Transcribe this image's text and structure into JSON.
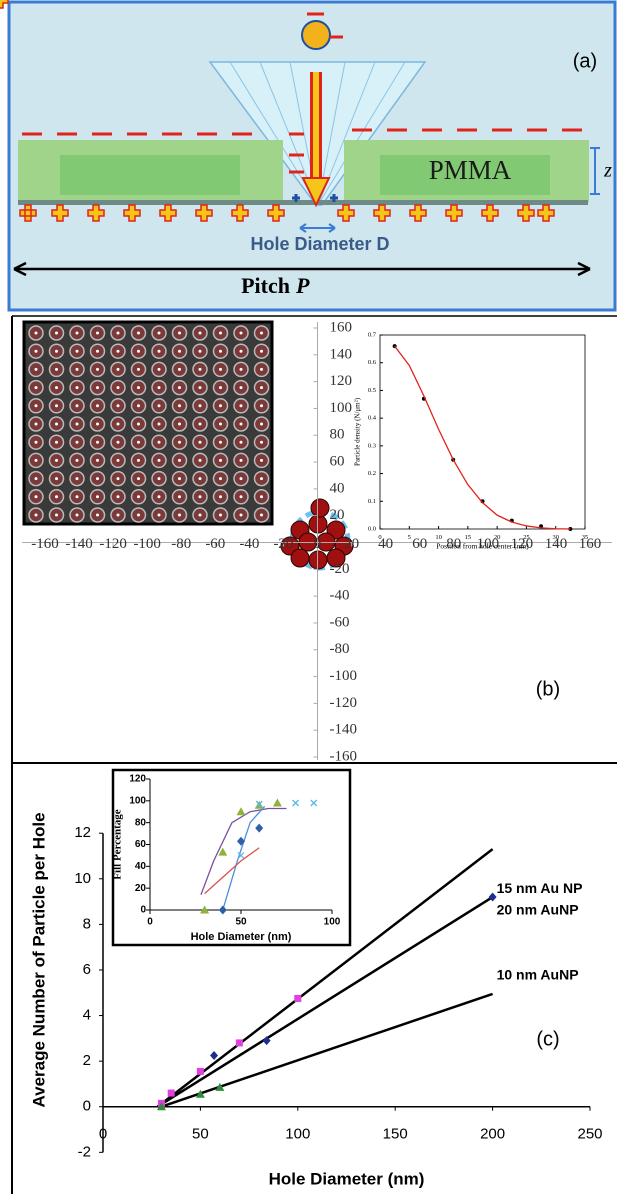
{
  "diagram": {
    "label": "(a)",
    "material": "PMMA",
    "z_label": "z",
    "hole_label": "Hole Diameter D",
    "pitch_word": "Pitch",
    "pitch_symbol": "P"
  },
  "chart_data": [
    {
      "type": "axes",
      "label": "(b)",
      "xlim": [
        -160,
        160
      ],
      "ylim": [
        -160,
        160
      ],
      "xticks": [
        -160,
        -140,
        -120,
        -100,
        -80,
        -60,
        -40,
        -20,
        0,
        20,
        40,
        60,
        80,
        100,
        120,
        140,
        160
      ],
      "yticks": [
        160,
        140,
        120,
        100,
        80,
        60,
        40,
        20,
        -20,
        -40,
        -60,
        -80,
        -100,
        -120,
        -140,
        -160
      ]
    },
    {
      "type": "line",
      "xlabel": "Position from hole center (nm)",
      "ylabel": "Particle density (N/μm²)",
      "xlim": [
        0,
        35
      ],
      "ylim": [
        0,
        0.7
      ],
      "xticks": [
        0,
        5,
        10,
        15,
        20,
        25,
        30,
        35
      ],
      "yticks": [
        {
          "value": 0,
          "label": "0.0"
        },
        0.1,
        0.2,
        0.3,
        0.4,
        0.5,
        0.6,
        0.7
      ],
      "series": [
        {
          "color": "#000000",
          "marker": "circle",
          "x": [
            2.5,
            7.5,
            12.5,
            17.5,
            22.5,
            27.5,
            32.5
          ],
          "values": [
            0.66,
            0.47,
            0.25,
            0.1,
            0.03,
            0.01,
            0.0
          ]
        },
        {
          "color": "#e0241b",
          "marker": "none",
          "x": [
            2.5,
            5,
            7.5,
            10,
            12.5,
            15,
            17.5,
            20,
            22.5,
            25,
            27.5,
            30,
            32.5
          ],
          "values": [
            0.66,
            0.59,
            0.48,
            0.36,
            0.25,
            0.16,
            0.095,
            0.05,
            0.025,
            0.011,
            0.004,
            0.001,
            0.0
          ]
        }
      ]
    },
    {
      "type": "scatter",
      "label": "(c)",
      "xlabel": "Hole Diameter (nm)",
      "ylabel": "Average Number of Particle per Hole",
      "xlim": [
        0,
        250
      ],
      "ylim": [
        -2.6,
        13.5
      ],
      "xticks": [
        0,
        50,
        100,
        150,
        200,
        250
      ],
      "yticks": [
        -2,
        0,
        2,
        4,
        6,
        8,
        10,
        12
      ],
      "series": [
        {
          "name": "15 nm Au NP",
          "color": "#000000",
          "marker": "none",
          "x": [
            28,
            200
          ],
          "values": [
            0,
            11.3
          ]
        },
        {
          "name": "20 nm AuNP",
          "color": "#000000",
          "marker": "none",
          "x": [
            28,
            200
          ],
          "values": [
            0,
            9.2
          ]
        },
        {
          "name": "10 nm AuNP",
          "color": "#000000",
          "marker": "none",
          "x": [
            30,
            200
          ],
          "values": [
            0,
            4.95
          ]
        },
        {
          "color": "#e040e0",
          "marker": "square",
          "x": [
            30,
            35,
            50,
            70,
            100
          ],
          "values": [
            0.15,
            0.6,
            1.55,
            2.8,
            4.75
          ]
        },
        {
          "color": "#1f2f8f",
          "marker": "diamond",
          "x": [
            57,
            84,
            200
          ],
          "values": [
            2.25,
            2.9,
            9.2
          ]
        },
        {
          "color": "#2e8b3a",
          "marker": "triangle",
          "x": [
            30,
            50,
            60
          ],
          "values": [
            0,
            0.55,
            0.85
          ]
        }
      ]
    },
    {
      "type": "scatter",
      "xlabel": "Hole Diameter (nm)",
      "ylabel": "Fill Percentage",
      "xlim": [
        0,
        100
      ],
      "ylim": [
        0,
        120
      ],
      "xticks": [
        0,
        50,
        100
      ],
      "yticks": [
        0,
        20,
        40,
        60,
        80,
        100,
        120
      ],
      "series": [
        {
          "color": "#7b4fa0",
          "marker": "none",
          "x": [
            28,
            35,
            45,
            55,
            65,
            75
          ],
          "values": [
            14,
            45,
            80,
            90,
            93,
            93
          ]
        },
        {
          "color": "#4a90d9",
          "marker": "none",
          "x": [
            40,
            48,
            55,
            63
          ],
          "values": [
            0,
            45,
            80,
            95
          ]
        },
        {
          "color": "#d9534f",
          "marker": "none",
          "x": [
            30,
            40,
            50,
            60
          ],
          "values": [
            15,
            30,
            45,
            57
          ]
        },
        {
          "color": "#8fb33a",
          "marker": "triangle",
          "x": [
            30,
            40,
            50,
            60,
            70
          ],
          "values": [
            0,
            53,
            90,
            96,
            98
          ]
        },
        {
          "color": "#2f5fa8",
          "marker": "diamond",
          "x": [
            40,
            50,
            60
          ],
          "values": [
            0,
            63,
            75
          ]
        },
        {
          "color": "#5bb8e0",
          "marker": "x",
          "x": [
            50,
            60,
            80,
            90
          ],
          "values": [
            50,
            97,
            98,
            98
          ]
        }
      ]
    }
  ]
}
